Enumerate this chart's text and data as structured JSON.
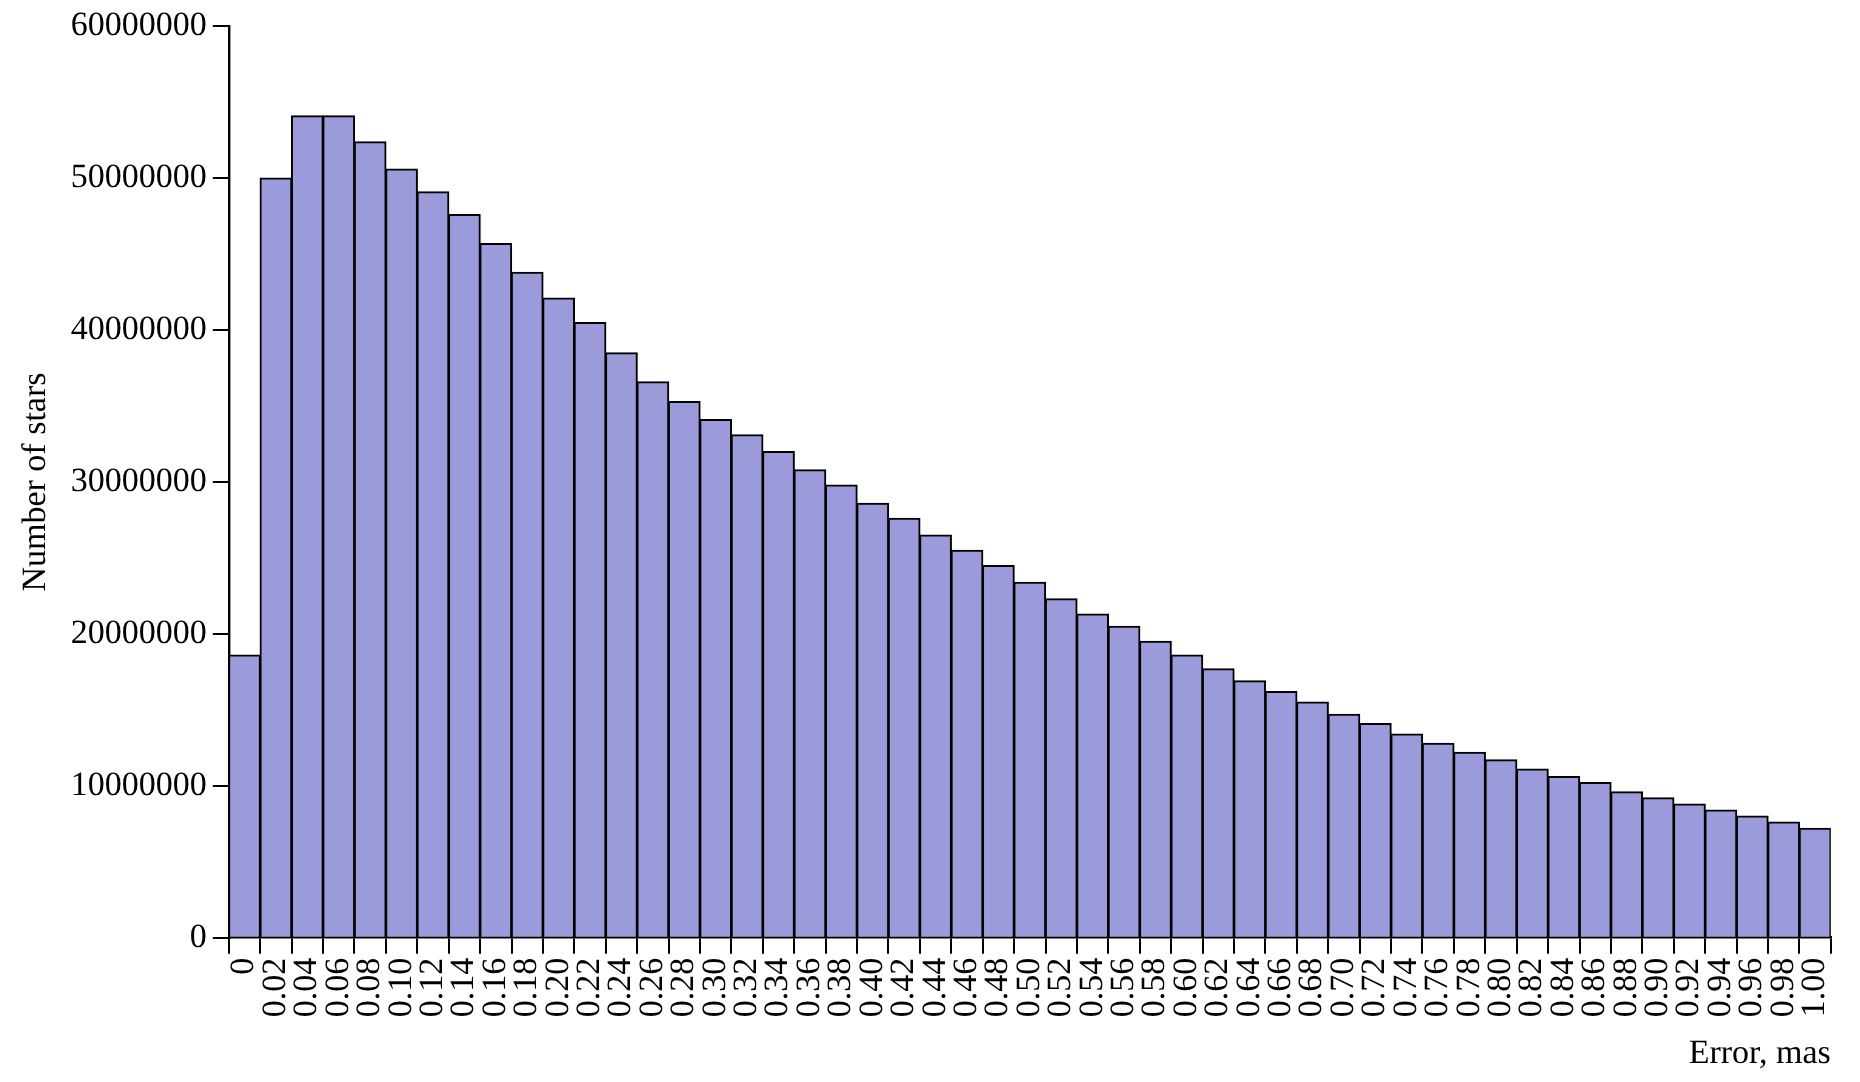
{
  "chart_data": {
    "type": "bar",
    "xlabel": "Error, mas",
    "ylabel": "Number of stars",
    "categories": [
      "0",
      "0.02",
      "0.04",
      "0.06",
      "0.08",
      "0.10",
      "0.12",
      "0.14",
      "0.16",
      "0.18",
      "0.20",
      "0.22",
      "0.24",
      "0.26",
      "0.28",
      "0.30",
      "0.32",
      "0.34",
      "0.36",
      "0.38",
      "0.40",
      "0.42",
      "0.44",
      "0.46",
      "0.48",
      "0.50",
      "0.52",
      "0.54",
      "0.56",
      "0.58",
      "0.60",
      "0.62",
      "0.64",
      "0.66",
      "0.68",
      "0.70",
      "0.72",
      "0.74",
      "0.76",
      "0.78",
      "0.80",
      "0.82",
      "0.84",
      "0.86",
      "0.88",
      "0.90",
      "0.92",
      "0.94",
      "0.96",
      "0.98",
      "1.00"
    ],
    "values": [
      18600000,
      50000000,
      54100000,
      54100000,
      52400000,
      50600000,
      49100000,
      47600000,
      45700000,
      43800000,
      42100000,
      40500000,
      38500000,
      36600000,
      35300000,
      34100000,
      33100000,
      32000000,
      30800000,
      29800000,
      28600000,
      27600000,
      26500000,
      25500000,
      24500000,
      23400000,
      22300000,
      21300000,
      20500000,
      19500000,
      18600000,
      17700000,
      16900000,
      16200000,
      15500000,
      14700000,
      14100000,
      13400000,
      12800000,
      12200000,
      11700000,
      11100000,
      10600000,
      10200000,
      9600000,
      9200000,
      8800000,
      8400000,
      8000000,
      7600000,
      7200000
    ],
    "color": "#9b9bdb",
    "ylim": [
      0,
      60000000
    ],
    "yticks": [
      0,
      10000000,
      20000000,
      30000000,
      40000000,
      50000000,
      60000000
    ],
    "grid": false,
    "legend": false
  }
}
